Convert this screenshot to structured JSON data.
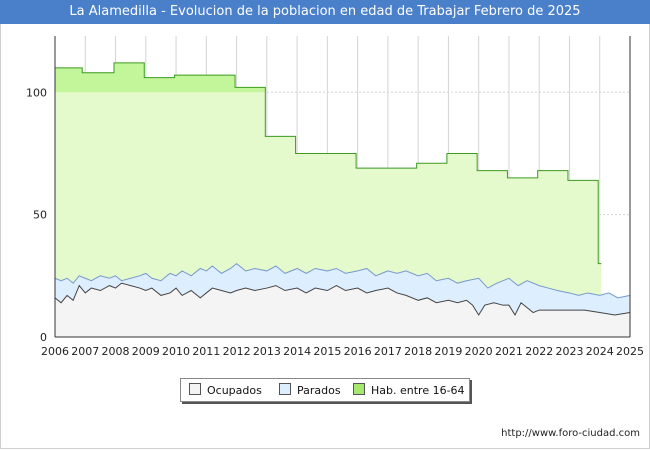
{
  "page": {
    "title": "La Alamedilla - Evolucion de la poblacion en edad de Trabajar Febrero de 2025",
    "footer_url": "http://www.foro-ciudad.com"
  },
  "chart_data": {
    "type": "area",
    "title": "La Alamedilla - Evolucion de la poblacion en edad de Trabajar Febrero de 2025",
    "xlabel": "",
    "ylabel": "",
    "xlim": [
      2006,
      2025
    ],
    "ylim": [
      0,
      123
    ],
    "x_ticks": [
      "2006",
      "2007",
      "2008",
      "2009",
      "2010",
      "2011",
      "2012",
      "2013",
      "2014",
      "2015",
      "2016",
      "2017",
      "2018",
      "2019",
      "2020",
      "2021",
      "2022",
      "2023",
      "2024",
      "2025"
    ],
    "y_ticks": [
      0,
      50,
      100
    ],
    "grid": true,
    "legend_position": "bottom-center",
    "series": [
      {
        "name": "Hab. entre 16-64",
        "color": "#e4f9cc",
        "line_color": "#3c9a20",
        "highlight_color": "#c3f59b",
        "steps": [
          {
            "from": 2006.0,
            "to": 2006.9,
            "value": 110
          },
          {
            "from": 2006.9,
            "to": 2007.95,
            "value": 108
          },
          {
            "from": 2007.95,
            "to": 2008.95,
            "value": 112
          },
          {
            "from": 2008.95,
            "to": 2009.95,
            "value": 106
          },
          {
            "from": 2009.95,
            "to": 2011.95,
            "value": 107
          },
          {
            "from": 2011.95,
            "to": 2012.95,
            "value": 102
          },
          {
            "from": 2012.95,
            "to": 2013.95,
            "value": 82
          },
          {
            "from": 2013.95,
            "to": 2015.95,
            "value": 75
          },
          {
            "from": 2015.95,
            "to": 2017.95,
            "value": 69
          },
          {
            "from": 2017.95,
            "to": 2018.95,
            "value": 71
          },
          {
            "from": 2018.95,
            "to": 2019.95,
            "value": 75
          },
          {
            "from": 2019.95,
            "to": 2020.95,
            "value": 68
          },
          {
            "from": 2020.95,
            "to": 2021.95,
            "value": 65
          },
          {
            "from": 2021.95,
            "to": 2022.95,
            "value": 68
          },
          {
            "from": 2022.95,
            "to": 2023.95,
            "value": 64
          },
          {
            "from": 2023.95,
            "to": 2024.05,
            "value": 30
          }
        ]
      },
      {
        "name": "Parados",
        "color": "#ddeeff",
        "line_color": "#7799cc",
        "points": [
          [
            2006.0,
            24
          ],
          [
            2006.2,
            23
          ],
          [
            2006.4,
            24
          ],
          [
            2006.6,
            22
          ],
          [
            2006.8,
            25
          ],
          [
            2007.0,
            24
          ],
          [
            2007.2,
            23
          ],
          [
            2007.5,
            25
          ],
          [
            2007.8,
            24
          ],
          [
            2008.0,
            25
          ],
          [
            2008.2,
            23
          ],
          [
            2008.5,
            24
          ],
          [
            2008.8,
            25
          ],
          [
            2009.0,
            26
          ],
          [
            2009.2,
            24
          ],
          [
            2009.5,
            23
          ],
          [
            2009.8,
            26
          ],
          [
            2010.0,
            25
          ],
          [
            2010.2,
            27
          ],
          [
            2010.5,
            25
          ],
          [
            2010.8,
            28
          ],
          [
            2011.0,
            27
          ],
          [
            2011.2,
            29
          ],
          [
            2011.5,
            26
          ],
          [
            2011.8,
            28
          ],
          [
            2012.0,
            30
          ],
          [
            2012.3,
            27
          ],
          [
            2012.6,
            28
          ],
          [
            2013.0,
            27
          ],
          [
            2013.3,
            29
          ],
          [
            2013.6,
            26
          ],
          [
            2014.0,
            28
          ],
          [
            2014.3,
            26
          ],
          [
            2014.6,
            28
          ],
          [
            2015.0,
            27
          ],
          [
            2015.3,
            28
          ],
          [
            2015.6,
            26
          ],
          [
            2016.0,
            27
          ],
          [
            2016.3,
            28
          ],
          [
            2016.6,
            25
          ],
          [
            2017.0,
            27
          ],
          [
            2017.3,
            26
          ],
          [
            2017.6,
            27
          ],
          [
            2018.0,
            25
          ],
          [
            2018.3,
            26
          ],
          [
            2018.6,
            23
          ],
          [
            2019.0,
            24
          ],
          [
            2019.3,
            22
          ],
          [
            2019.6,
            23
          ],
          [
            2020.0,
            24
          ],
          [
            2020.3,
            20
          ],
          [
            2020.6,
            22
          ],
          [
            2021.0,
            24
          ],
          [
            2021.3,
            21
          ],
          [
            2021.6,
            23
          ],
          [
            2022.0,
            21
          ],
          [
            2022.3,
            20
          ],
          [
            2022.6,
            19
          ],
          [
            2023.0,
            18
          ],
          [
            2023.3,
            17
          ],
          [
            2023.6,
            18
          ],
          [
            2024.0,
            17
          ],
          [
            2024.3,
            18
          ],
          [
            2024.6,
            16
          ],
          [
            2025.0,
            17
          ]
        ]
      },
      {
        "name": "Ocupados",
        "color": "#f4f4f4",
        "line_color": "#444444",
        "points": [
          [
            2006.0,
            16
          ],
          [
            2006.2,
            14
          ],
          [
            2006.4,
            17
          ],
          [
            2006.6,
            15
          ],
          [
            2006.8,
            21
          ],
          [
            2007.0,
            18
          ],
          [
            2007.2,
            20
          ],
          [
            2007.5,
            19
          ],
          [
            2007.8,
            21
          ],
          [
            2008.0,
            20
          ],
          [
            2008.2,
            22
          ],
          [
            2008.5,
            21
          ],
          [
            2008.8,
            20
          ],
          [
            2009.0,
            19
          ],
          [
            2009.2,
            20
          ],
          [
            2009.5,
            17
          ],
          [
            2009.8,
            18
          ],
          [
            2010.0,
            20
          ],
          [
            2010.2,
            17
          ],
          [
            2010.5,
            19
          ],
          [
            2010.8,
            16
          ],
          [
            2011.0,
            18
          ],
          [
            2011.2,
            20
          ],
          [
            2011.5,
            19
          ],
          [
            2011.8,
            18
          ],
          [
            2012.0,
            19
          ],
          [
            2012.3,
            20
          ],
          [
            2012.6,
            19
          ],
          [
            2013.0,
            20
          ],
          [
            2013.3,
            21
          ],
          [
            2013.6,
            19
          ],
          [
            2014.0,
            20
          ],
          [
            2014.3,
            18
          ],
          [
            2014.6,
            20
          ],
          [
            2015.0,
            19
          ],
          [
            2015.3,
            21
          ],
          [
            2015.6,
            19
          ],
          [
            2016.0,
            20
          ],
          [
            2016.3,
            18
          ],
          [
            2016.6,
            19
          ],
          [
            2017.0,
            20
          ],
          [
            2017.3,
            18
          ],
          [
            2017.6,
            17
          ],
          [
            2018.0,
            15
          ],
          [
            2018.3,
            16
          ],
          [
            2018.6,
            14
          ],
          [
            2019.0,
            15
          ],
          [
            2019.3,
            14
          ],
          [
            2019.6,
            15
          ],
          [
            2019.8,
            13
          ],
          [
            2020.0,
            9
          ],
          [
            2020.2,
            13
          ],
          [
            2020.5,
            14
          ],
          [
            2020.8,
            13
          ],
          [
            2021.0,
            13
          ],
          [
            2021.2,
            9
          ],
          [
            2021.4,
            14
          ],
          [
            2021.6,
            12
          ],
          [
            2021.8,
            10
          ],
          [
            2022.0,
            11
          ],
          [
            2022.5,
            11
          ],
          [
            2023.0,
            11
          ],
          [
            2023.5,
            11
          ],
          [
            2024.0,
            10
          ],
          [
            2024.5,
            9
          ],
          [
            2025.0,
            10
          ]
        ]
      }
    ],
    "legend": [
      {
        "label": "Ocupados",
        "color": "#f4f4f4"
      },
      {
        "label": "Parados",
        "color": "#ddeeff"
      },
      {
        "label": "Hab. entre 16-64",
        "color": "#a6e86e"
      }
    ]
  }
}
